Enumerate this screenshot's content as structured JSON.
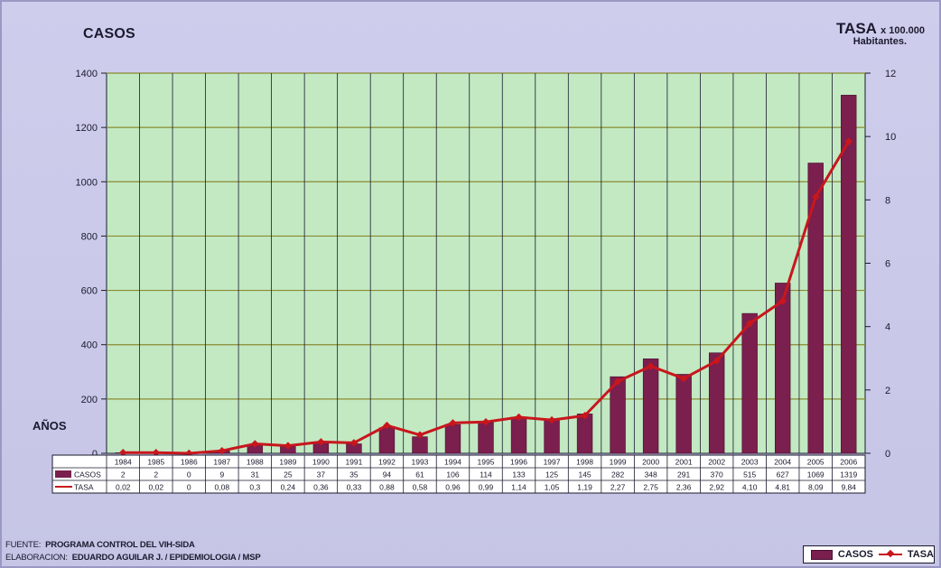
{
  "header": {
    "left_title": "CASOS",
    "right_title": "TASA",
    "right_title_suffix": "x 100.000",
    "right_subtitle": "Habitantes."
  },
  "x_axis_title": "AÑOS",
  "footer": {
    "line1_key": "FUENTE:",
    "line1_value": "PROGRAMA CONTROL DEL VIH-SIDA",
    "line2_key": "ELABORACION:",
    "line2_value": "EDUARDO AGUILAR J. / EPIDEMIOLOGIA / MSP"
  },
  "colors": {
    "plot_bg": "#c2e9c2",
    "bar": "#7a1f4e",
    "line": "#c8161d",
    "grid_h": "#8a8a30",
    "grid_v": "#1a1a2e"
  },
  "chart_data": {
    "type": "bar",
    "categories": [
      "1984",
      "1985",
      "1986",
      "1987",
      "1988",
      "1989",
      "1990",
      "1991",
      "1992",
      "1993",
      "1994",
      "1995",
      "1996",
      "1997",
      "1998",
      "1999",
      "2000",
      "2001",
      "2002",
      "2003",
      "2004",
      "2005",
      "2006"
    ],
    "category_labels": [
      "1984",
      "1985",
      "1986",
      "1987",
      "1988",
      "1989",
      "1990",
      "1991",
      "1992",
      "1993",
      "1994",
      "1995",
      "1996",
      "1997",
      "1998",
      "1999",
      "2000",
      "2001",
      "2002",
      "2003",
      "2004",
      "2005",
      "2006"
    ],
    "series": [
      {
        "name": "CASOS",
        "type": "bar",
        "axis": "left",
        "values": [
          2,
          2,
          0,
          9,
          31,
          25,
          37,
          35,
          94,
          61,
          106,
          114,
          133,
          125,
          145,
          282,
          348,
          291,
          370,
          515,
          627,
          1069,
          1319
        ],
        "labels": [
          "2",
          "2",
          "0",
          "9",
          "31",
          "25",
          "37",
          "35",
          "94",
          "61",
          "106",
          "114",
          "133",
          "125",
          "145",
          "282",
          "348",
          "291",
          "370",
          "515",
          "627",
          "1069",
          "1319"
        ]
      },
      {
        "name": "TASA",
        "type": "line",
        "axis": "right",
        "values": [
          0.02,
          0.02,
          0,
          0.08,
          0.3,
          0.24,
          0.36,
          0.33,
          0.88,
          0.58,
          0.96,
          0.99,
          1.14,
          1.05,
          1.19,
          2.27,
          2.75,
          2.36,
          2.92,
          4.1,
          4.81,
          8.09,
          9.84
        ],
        "labels": [
          "0,02",
          "0,02",
          "0",
          "0,08",
          "0,3",
          "0,24",
          "0,36",
          "0,33",
          "0,88",
          "0,58",
          "0,96",
          "0,99",
          "1,14",
          "1,05",
          "1,19",
          "2,27",
          "2,75",
          "2,36",
          "2,92",
          "4,10",
          "4,81",
          "8,09",
          "9,84"
        ]
      }
    ],
    "ylim_left": [
      0,
      1400
    ],
    "yticks_left": [
      0,
      200,
      400,
      600,
      800,
      1000,
      1200,
      1400
    ],
    "ylim_right": [
      0,
      12
    ],
    "yticks_right": [
      0,
      2,
      4,
      6,
      8,
      10,
      12
    ],
    "grid": true,
    "legend": "bottom-right",
    "data_table": true
  }
}
